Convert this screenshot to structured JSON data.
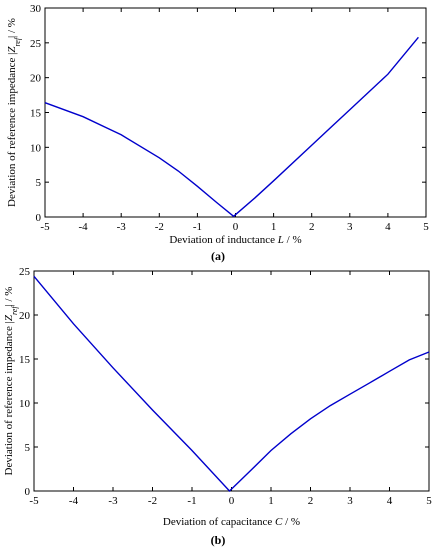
{
  "chart_data": [
    {
      "type": "line",
      "panel_label": "(a)",
      "xlabel": "Deviation of inductance L / %",
      "ylabel": "Deviation of reference impedance |Z_ref| / %",
      "xlim": [
        -5,
        5
      ],
      "ylim": [
        0,
        30
      ],
      "xticks": [
        -5,
        -4,
        -3,
        -2,
        -1,
        0,
        1,
        2,
        3,
        4,
        5
      ],
      "yticks": [
        0,
        5,
        10,
        15,
        20,
        25,
        30
      ],
      "grid": false,
      "series": [
        {
          "color": "#0000cc",
          "x": [
            -5,
            -4,
            -3,
            -2,
            -1.5,
            -1,
            -0.5,
            -0.05,
            0.5,
            1,
            2,
            3,
            4,
            4.8
          ],
          "y": [
            16.4,
            14.4,
            11.8,
            8.5,
            6.6,
            4.4,
            2.1,
            0.1,
            2.7,
            5.2,
            10.3,
            15.4,
            20.5,
            25.8
          ]
        }
      ]
    },
    {
      "type": "line",
      "panel_label": "(b)",
      "xlabel": "Deviation of capacitance C / %",
      "ylabel": "Deviation of reference impedance |Z_ref| / %",
      "xlim": [
        -5,
        5
      ],
      "ylim": [
        0,
        25
      ],
      "xticks": [
        -5,
        -4,
        -3,
        -2,
        -1,
        0,
        1,
        2,
        3,
        4,
        5
      ],
      "yticks": [
        0,
        5,
        10,
        15,
        20,
        25
      ],
      "grid": false,
      "series": [
        {
          "color": "#0000cc",
          "x": [
            -5,
            -4,
            -3,
            -2,
            -1,
            -0.05,
            0.5,
            1,
            1.5,
            2,
            2.5,
            3,
            3.5,
            4,
            4.5,
            5
          ],
          "y": [
            24.4,
            19.0,
            14.0,
            9.2,
            4.6,
            0.0,
            2.4,
            4.6,
            6.5,
            8.2,
            9.7,
            11.0,
            12.3,
            13.6,
            14.9,
            15.8
          ]
        }
      ]
    }
  ]
}
